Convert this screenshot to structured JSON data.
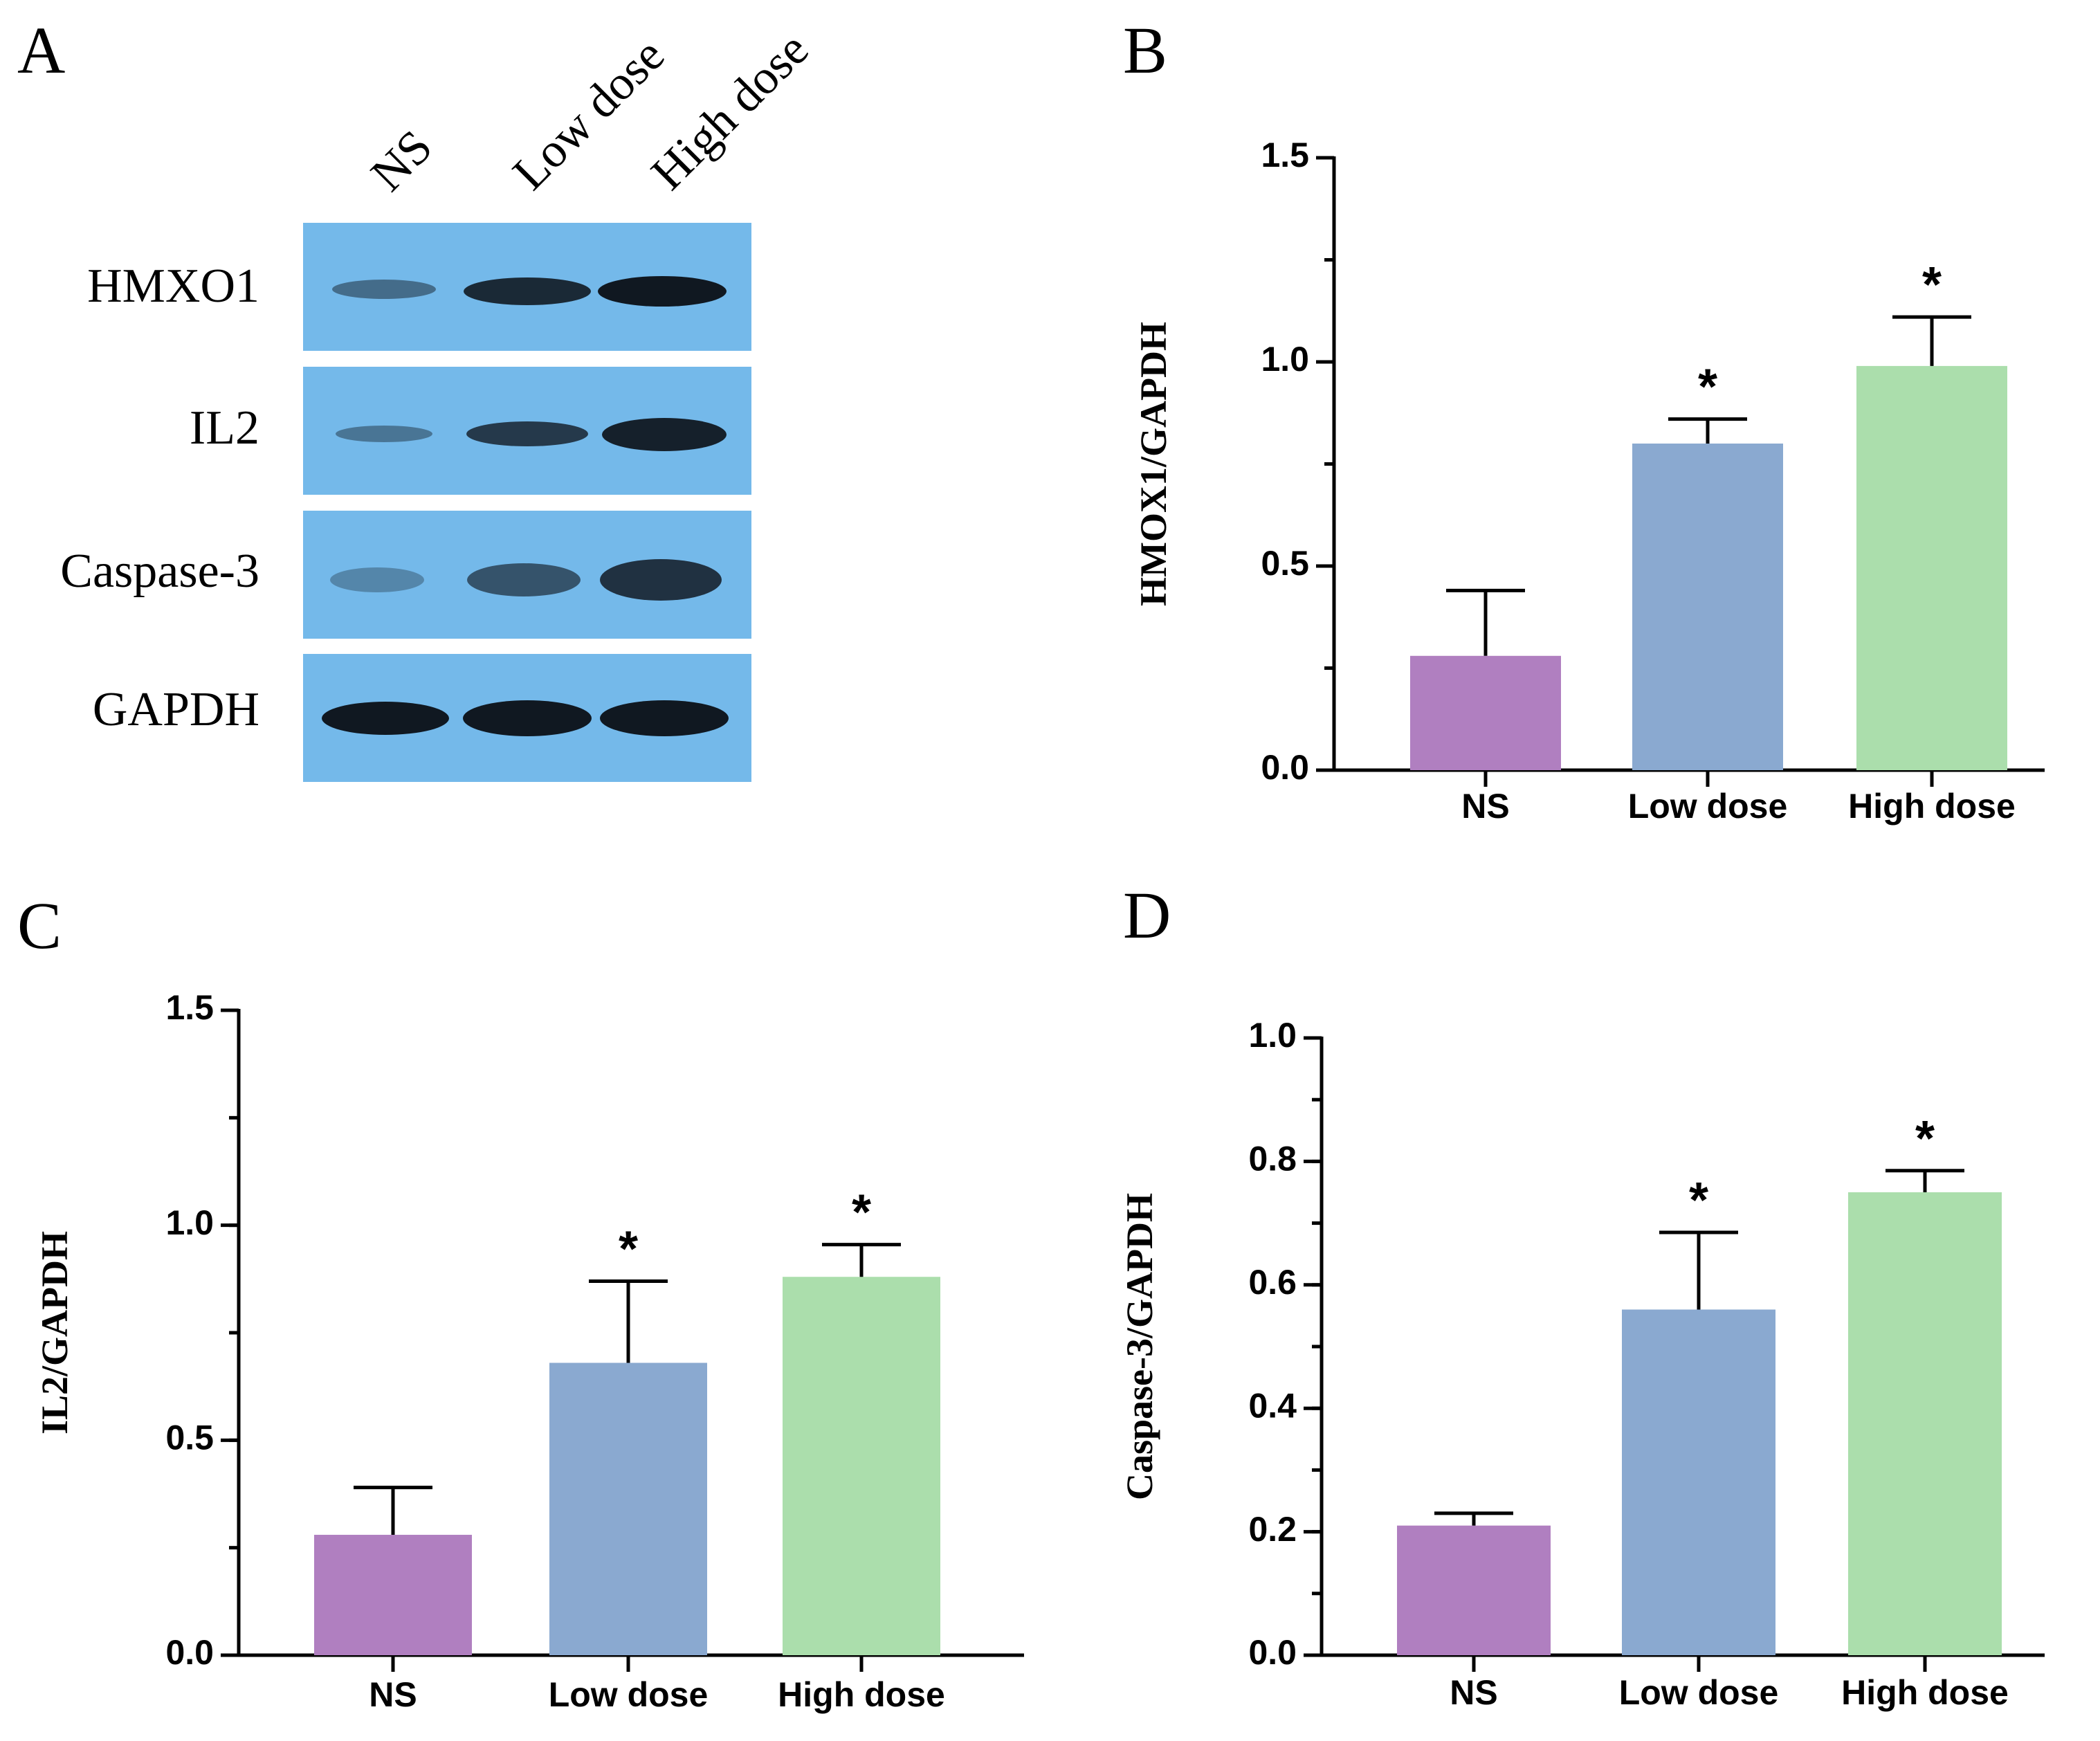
{
  "panels": {
    "A": {
      "letter": "A",
      "lanes": [
        "NS",
        "Low dose",
        "High dose"
      ],
      "proteins": [
        "HMXO1",
        "IL2",
        "Caspase-3",
        "GAPDH"
      ],
      "band_intensities": [
        [
          0.45,
          0.85,
          0.95
        ],
        [
          0.4,
          0.75,
          0.9
        ],
        [
          0.3,
          0.6,
          0.8
        ],
        [
          0.95,
          0.95,
          0.95
        ]
      ],
      "membrane_color": "#74B9EA",
      "band_color": "#0b0f16"
    },
    "B": {
      "letter": "B"
    },
    "C": {
      "letter": "C"
    },
    "D": {
      "letter": "D"
    }
  },
  "colors": {
    "NS": "#B07FC0",
    "Low dose": "#8AA9D0",
    "High dose": "#ABDEAC"
  },
  "chart_data": [
    {
      "panel": "B",
      "type": "bar",
      "categories": [
        "NS",
        "Low dose",
        "High dose"
      ],
      "values": [
        0.28,
        0.8,
        0.99
      ],
      "errors": [
        0.16,
        0.06,
        0.12
      ],
      "significance": [
        "",
        "*",
        "*"
      ],
      "ylabel": "HMOX1/GAPDH",
      "ylim": [
        0,
        1.5
      ],
      "yticks": [
        "0.0",
        "0.5",
        "1.0",
        "1.5"
      ],
      "ytick_values": [
        0,
        0.5,
        1.0,
        1.5
      ],
      "minor_step": 0.25
    },
    {
      "panel": "C",
      "type": "bar",
      "categories": [
        "NS",
        "Low dose",
        "High dose"
      ],
      "values": [
        0.28,
        0.68,
        0.88
      ],
      "errors": [
        0.11,
        0.19,
        0.075
      ],
      "significance": [
        "",
        "*",
        "*"
      ],
      "ylabel": "IL2/GAPDH",
      "ylim": [
        0,
        1.5
      ],
      "yticks": [
        "0.0",
        "0.5",
        "1.0",
        "1.5"
      ],
      "ytick_values": [
        0,
        0.5,
        1.0,
        1.5
      ],
      "minor_step": 0.25
    },
    {
      "panel": "D",
      "type": "bar",
      "categories": [
        "NS",
        "Low dose",
        "High dose"
      ],
      "values": [
        0.21,
        0.56,
        0.75
      ],
      "errors": [
        0.02,
        0.125,
        0.035
      ],
      "significance": [
        "",
        "*",
        "*"
      ],
      "ylabel": "Caspase-3/GAPDH",
      "ylim": [
        0,
        1.0
      ],
      "yticks": [
        "0.0",
        "0.2",
        "0.4",
        "0.6",
        "0.8",
        "1.0"
      ],
      "ytick_values": [
        0,
        0.2,
        0.4,
        0.6,
        0.8,
        1.0
      ],
      "minor_step": 0.1
    }
  ]
}
